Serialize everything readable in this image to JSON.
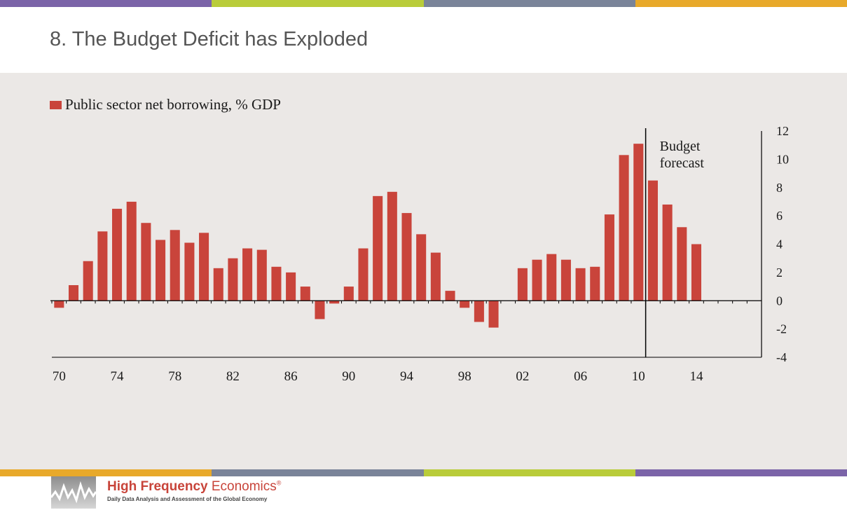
{
  "slide": {
    "title": "8.  The Budget Deficit has Exploded",
    "stripe_colors": [
      "#7b64a8",
      "#b9cc3a",
      "#7a8499",
      "#e8a92a"
    ],
    "bottom_stripe_colors": [
      "#e8a92a",
      "#7a8499",
      "#b9cc3a",
      "#7b64a8"
    ],
    "panel_color": "#ebe8e6"
  },
  "chart_data": {
    "type": "bar",
    "title": "",
    "xlabel": "",
    "ylabel": "",
    "series": [
      {
        "name": "Public sector net borrowing, % GDP",
        "color": "#c9443b",
        "x": [
          1970,
          1971,
          1972,
          1973,
          1974,
          1975,
          1976,
          1977,
          1978,
          1979,
          1980,
          1981,
          1982,
          1983,
          1984,
          1985,
          1986,
          1987,
          1988,
          1989,
          1990,
          1991,
          1992,
          1993,
          1994,
          1995,
          1996,
          1997,
          1998,
          1999,
          2000,
          2001,
          2002,
          2003,
          2004,
          2005,
          2006,
          2007,
          2008,
          2009,
          2010,
          2011,
          2012,
          2013,
          2014
        ],
        "values": [
          -0.5,
          1.1,
          2.8,
          4.9,
          6.5,
          7.0,
          5.5,
          4.3,
          5.0,
          4.1,
          4.8,
          2.3,
          3.0,
          3.7,
          3.6,
          2.4,
          2.0,
          1.0,
          -1.3,
          -0.2,
          1.0,
          3.7,
          7.4,
          7.7,
          6.2,
          4.7,
          3.4,
          0.7,
          -0.5,
          -1.5,
          -1.9,
          0.0,
          2.3,
          2.9,
          3.3,
          2.9,
          2.3,
          2.4,
          6.1,
          10.3,
          11.1,
          8.5,
          6.8,
          5.2,
          4.0
        ]
      }
    ],
    "ylim": [
      -4,
      12
    ],
    "y_ticks": [
      "12",
      "10",
      "8",
      "6",
      "4",
      "2",
      "0",
      "-2",
      "-4"
    ],
    "x_ticks": [
      "70",
      "74",
      "78",
      "82",
      "86",
      "90",
      "94",
      "98",
      "02",
      "06",
      "10",
      "14"
    ],
    "x_range": [
      1970,
      2018
    ],
    "forecast_start": 2010.5,
    "annotation": [
      "Budget",
      "forecast"
    ],
    "legend_position": "top-left",
    "y_axis_side": "right",
    "grid": false
  },
  "logo": {
    "name_bold": "High Frequency",
    "name_light": "Economics",
    "mark": "®",
    "tagline": "Daily Data Analysis and Assessment of the Global Economy"
  }
}
